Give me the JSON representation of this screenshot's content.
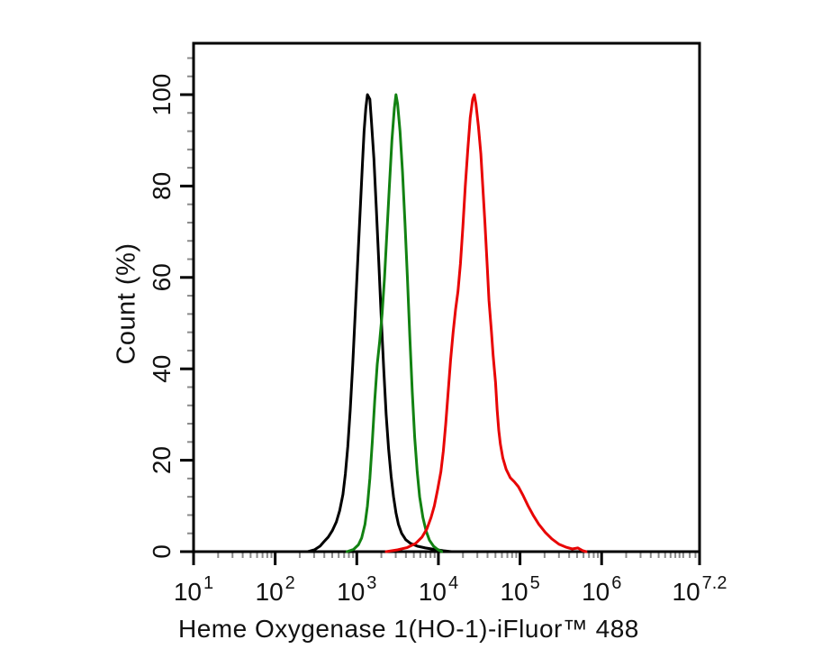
{
  "figure": {
    "background_color": "#ffffff",
    "axis_color": "#000000",
    "minor_tick_color": "#8a8a8a"
  },
  "chart_data": {
    "type": "line",
    "subtype": "flow-cytometry-histogram-overlay",
    "title": "",
    "xlabel": "Heme Oxygenase 1(HO-1)-iFluor™ 488",
    "ylabel": "Count (%)",
    "x_scale": "log10",
    "x_range_log10": [
      1,
      7.2
    ],
    "ylim": [
      0,
      111
    ],
    "grid": false,
    "legend": "none",
    "x_ticks": [
      {
        "log10": 1,
        "base": "10",
        "exp": "1"
      },
      {
        "log10": 2,
        "base": "10",
        "exp": "2"
      },
      {
        "log10": 3,
        "base": "10",
        "exp": "3"
      },
      {
        "log10": 4,
        "base": "10",
        "exp": "4"
      },
      {
        "log10": 5,
        "base": "10",
        "exp": "5"
      },
      {
        "log10": 6,
        "base": "10",
        "exp": "6"
      },
      {
        "log10": 7.2,
        "base": "10",
        "exp": "7.2"
      }
    ],
    "y_ticks": [
      {
        "value": 0,
        "label": "0"
      },
      {
        "value": 20,
        "label": "20"
      },
      {
        "value": 40,
        "label": "40"
      },
      {
        "value": 60,
        "label": "60"
      },
      {
        "value": 80,
        "label": "80"
      },
      {
        "value": 100,
        "label": "100"
      }
    ],
    "y_minor_step": 4,
    "series": [
      {
        "name": "black-curve",
        "color": "#000000",
        "peak_log10x": 3.13,
        "peak_pct": 100,
        "points_log10x_pct": [
          [
            2.4,
            0
          ],
          [
            2.48,
            0.4
          ],
          [
            2.55,
            1.2
          ],
          [
            2.6,
            2.2
          ],
          [
            2.65,
            3.2
          ],
          [
            2.7,
            4.6
          ],
          [
            2.75,
            6.5
          ],
          [
            2.79,
            9
          ],
          [
            2.83,
            12.5
          ],
          [
            2.86,
            17
          ],
          [
            2.89,
            23
          ],
          [
            2.92,
            31
          ],
          [
            2.95,
            41
          ],
          [
            2.98,
            52
          ],
          [
            3.01,
            63
          ],
          [
            3.04,
            74
          ],
          [
            3.07,
            85
          ],
          [
            3.09,
            92
          ],
          [
            3.11,
            97
          ],
          [
            3.13,
            100
          ],
          [
            3.16,
            99
          ],
          [
            3.18,
            94
          ],
          [
            3.21,
            86
          ],
          [
            3.24,
            75
          ],
          [
            3.27,
            63
          ],
          [
            3.3,
            51
          ],
          [
            3.33,
            40
          ],
          [
            3.36,
            30
          ],
          [
            3.39,
            22.5
          ],
          [
            3.42,
            16.5
          ],
          [
            3.45,
            12
          ],
          [
            3.48,
            8.5
          ],
          [
            3.51,
            6
          ],
          [
            3.55,
            4
          ],
          [
            3.6,
            2.6
          ],
          [
            3.66,
            1.8
          ],
          [
            3.74,
            1.2
          ],
          [
            3.84,
            0.8
          ],
          [
            3.95,
            0.5
          ],
          [
            4.06,
            0.2
          ],
          [
            4.16,
            0
          ]
        ]
      },
      {
        "name": "green-curve",
        "color": "#128212",
        "peak_log10x": 3.48,
        "peak_pct": 100,
        "points_log10x_pct": [
          [
            2.88,
            0
          ],
          [
            2.96,
            0.5
          ],
          [
            3.02,
            1.5
          ],
          [
            3.06,
            3
          ],
          [
            3.1,
            6
          ],
          [
            3.13,
            10
          ],
          [
            3.16,
            16
          ],
          [
            3.19,
            24
          ],
          [
            3.22,
            33
          ],
          [
            3.25,
            41
          ],
          [
            3.28,
            46
          ],
          [
            3.31,
            52
          ],
          [
            3.34,
            60
          ],
          [
            3.37,
            70
          ],
          [
            3.4,
            80
          ],
          [
            3.43,
            90
          ],
          [
            3.46,
            97
          ],
          [
            3.48,
            100
          ],
          [
            3.5,
            98
          ],
          [
            3.53,
            92
          ],
          [
            3.56,
            83
          ],
          [
            3.59,
            72
          ],
          [
            3.62,
            60
          ],
          [
            3.65,
            47
          ],
          [
            3.68,
            35
          ],
          [
            3.71,
            25
          ],
          [
            3.74,
            17.5
          ],
          [
            3.77,
            12
          ],
          [
            3.81,
            7.5
          ],
          [
            3.85,
            4.5
          ],
          [
            3.89,
            2.5
          ],
          [
            3.94,
            1.2
          ],
          [
            3.99,
            0.5
          ],
          [
            4.04,
            0
          ]
        ]
      },
      {
        "name": "red-curve",
        "color": "#e80505",
        "peak_log10x": 4.44,
        "peak_pct": 100,
        "points_log10x_pct": [
          [
            3.36,
            0
          ],
          [
            3.5,
            0.4
          ],
          [
            3.62,
            0.9
          ],
          [
            3.72,
            1.8
          ],
          [
            3.8,
            3.2
          ],
          [
            3.86,
            5
          ],
          [
            3.91,
            7.5
          ],
          [
            3.95,
            10
          ],
          [
            3.99,
            13.5
          ],
          [
            4.03,
            17.5
          ],
          [
            4.06,
            22
          ],
          [
            4.09,
            28
          ],
          [
            4.12,
            35
          ],
          [
            4.15,
            42
          ],
          [
            4.18,
            48
          ],
          [
            4.21,
            53
          ],
          [
            4.24,
            57
          ],
          [
            4.27,
            63
          ],
          [
            4.3,
            71
          ],
          [
            4.33,
            80
          ],
          [
            4.36,
            88
          ],
          [
            4.39,
            95
          ],
          [
            4.42,
            99
          ],
          [
            4.44,
            100
          ],
          [
            4.46,
            98
          ],
          [
            4.49,
            93
          ],
          [
            4.52,
            87
          ],
          [
            4.54,
            81
          ],
          [
            4.57,
            72
          ],
          [
            4.6,
            62
          ],
          [
            4.62,
            55
          ],
          [
            4.65,
            48
          ],
          [
            4.67,
            43
          ],
          [
            4.7,
            37
          ],
          [
            4.72,
            31
          ],
          [
            4.74,
            26.5
          ],
          [
            4.76,
            23.5
          ],
          [
            4.79,
            20.5
          ],
          [
            4.83,
            18
          ],
          [
            4.88,
            16.2
          ],
          [
            4.93,
            15.3
          ],
          [
            4.98,
            14.2
          ],
          [
            5.04,
            12.2
          ],
          [
            5.1,
            10
          ],
          [
            5.16,
            8
          ],
          [
            5.23,
            6
          ],
          [
            5.31,
            4.2
          ],
          [
            5.39,
            2.8
          ],
          [
            5.48,
            1.6
          ],
          [
            5.56,
            1.0
          ],
          [
            5.64,
            0.6
          ],
          [
            5.71,
            0.8
          ],
          [
            5.77,
            0.2
          ],
          [
            5.81,
            0
          ]
        ]
      }
    ]
  }
}
